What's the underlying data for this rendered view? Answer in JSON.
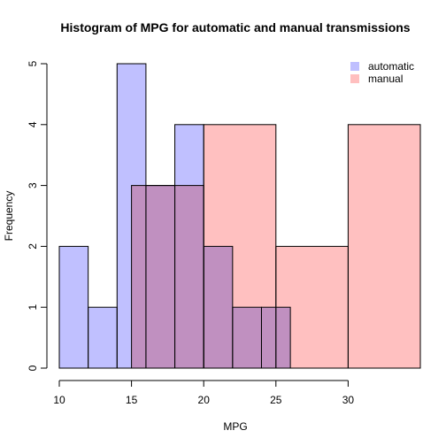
{
  "chart_data": {
    "type": "bar",
    "title": "Histogram of MPG for automatic and manual transmissions",
    "xlabel": "MPG",
    "ylabel": "Frequency",
    "xlim": [
      10,
      35
    ],
    "ylim": [
      0,
      5
    ],
    "x_ticks": [
      10,
      15,
      20,
      25,
      30
    ],
    "y_ticks": [
      0,
      1,
      2,
      3,
      4,
      5
    ],
    "grid": false,
    "legend_position": "top-right",
    "series": [
      {
        "name": "automatic",
        "color": "#bfbfff",
        "bins": [
          {
            "from": 10,
            "to": 12,
            "count": 2
          },
          {
            "from": 12,
            "to": 14,
            "count": 1
          },
          {
            "from": 14,
            "to": 16,
            "count": 5
          },
          {
            "from": 16,
            "to": 18,
            "count": 3
          },
          {
            "from": 18,
            "to": 20,
            "count": 4
          },
          {
            "from": 20,
            "to": 22,
            "count": 2
          },
          {
            "from": 22,
            "to": 24,
            "count": 1
          },
          {
            "from": 24,
            "to": 26,
            "count": 1
          }
        ]
      },
      {
        "name": "manual",
        "color": "#ffbfbf",
        "bins": [
          {
            "from": 15,
            "to": 20,
            "count": 3
          },
          {
            "from": 20,
            "to": 25,
            "count": 4
          },
          {
            "from": 25,
            "to": 30,
            "count": 2
          },
          {
            "from": 30,
            "to": 35,
            "count": 4
          }
        ]
      }
    ]
  }
}
